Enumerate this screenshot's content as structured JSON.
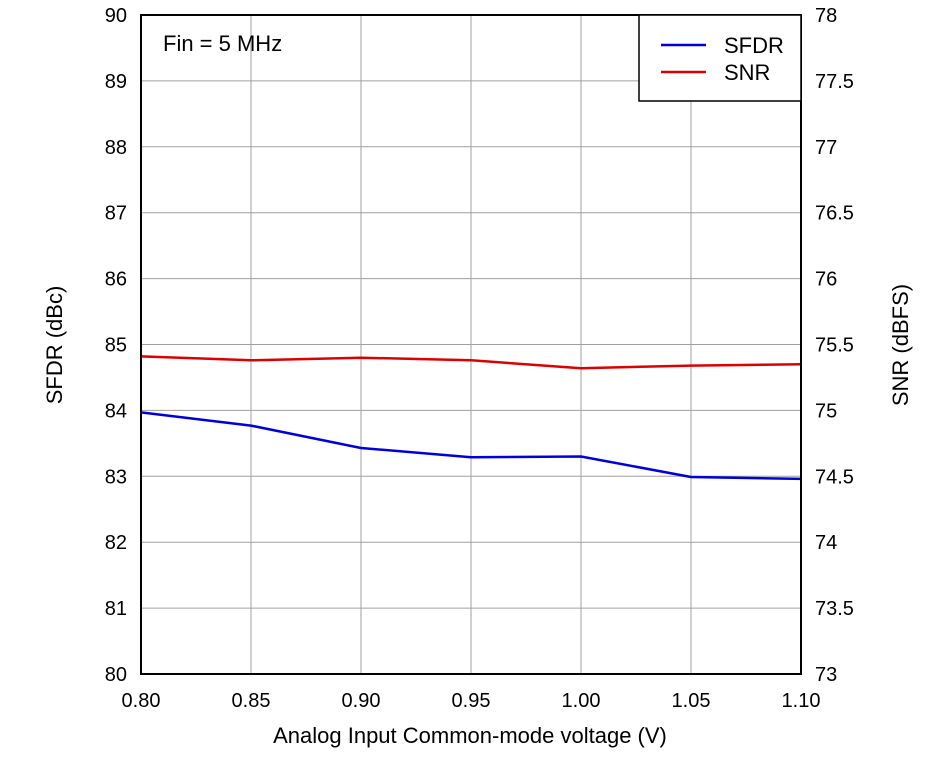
{
  "chart_data": {
    "type": "line",
    "x": [
      0.8,
      0.85,
      0.9,
      0.95,
      1.0,
      1.05,
      1.1
    ],
    "x_tick_labels": [
      "0.80",
      "0.85",
      "0.90",
      "0.95",
      "1.00",
      "1.05",
      "1.10"
    ],
    "xlim": [
      0.8,
      1.1
    ],
    "xlabel": "Analog Input Common-mode voltage (V)",
    "y_left": {
      "label": "SFDR (dBc)",
      "lim": [
        80,
        90
      ],
      "ticks": [
        "80",
        "81",
        "82",
        "83",
        "84",
        "85",
        "86",
        "87",
        "88",
        "89",
        "90"
      ]
    },
    "y_right": {
      "label": "SNR (dBFS)",
      "lim": [
        73,
        78
      ],
      "ticks": [
        "73",
        "73.5",
        "74",
        "74.5",
        "75",
        "75.5",
        "76",
        "76.5",
        "77",
        "77.5",
        "78"
      ]
    },
    "series": [
      {
        "name": "SFDR",
        "axis": "left",
        "color": "#0000dd",
        "x": [
          0.8,
          0.85,
          0.9,
          0.95,
          1.0,
          1.05,
          1.1
        ],
        "values": [
          83.97,
          83.77,
          83.43,
          83.29,
          83.3,
          82.99,
          82.96
        ]
      },
      {
        "name": "SNR",
        "axis": "right",
        "color": "#dd0000",
        "x": [
          0.8,
          0.85,
          0.9,
          0.95,
          1.0,
          1.05,
          1.1
        ],
        "values": [
          75.41,
          75.38,
          75.4,
          75.38,
          75.32,
          75.34,
          75.35
        ]
      }
    ],
    "annotation": "Fin = 5 MHz",
    "legend_position": "top-right",
    "grid": true
  }
}
